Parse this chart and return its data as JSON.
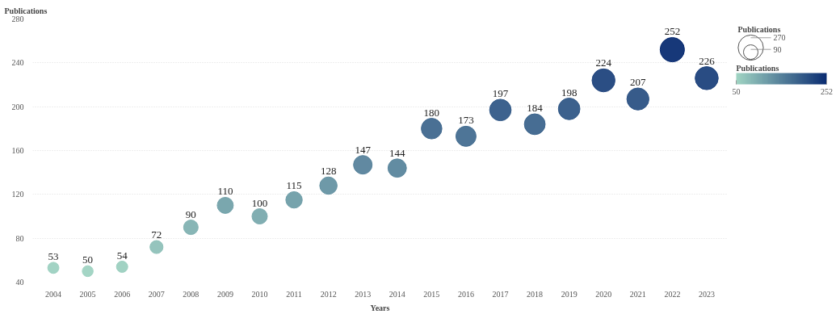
{
  "chart_data": {
    "type": "bubble",
    "xlabel": "Years",
    "ylabel": "Publications",
    "legend_title": "Publications",
    "clabel": "Publications",
    "categories": [
      "2004",
      "2005",
      "2006",
      "2007",
      "2008",
      "2009",
      "2010",
      "2011",
      "2012",
      "2013",
      "2014",
      "2015",
      "2016",
      "2017",
      "2018",
      "2019",
      "2020",
      "2021",
      "2022",
      "2023"
    ],
    "values": [
      53,
      50,
      54,
      72,
      90,
      110,
      100,
      115,
      128,
      147,
      144,
      180,
      173,
      197,
      184,
      198,
      224,
      207,
      252,
      226
    ],
    "sizes": [
      53,
      50,
      54,
      72,
      90,
      110,
      100,
      115,
      128,
      147,
      144,
      180,
      173,
      197,
      184,
      198,
      224,
      207,
      252,
      226
    ],
    "cvalues": [
      53,
      50,
      54,
      72,
      90,
      110,
      100,
      115,
      128,
      147,
      144,
      180,
      173,
      197,
      184,
      198,
      224,
      207,
      252,
      226
    ],
    "colors": [
      "#9dd1c1",
      "#9fd3c2",
      "#9cd0c0",
      "#8fc1b9",
      "#82b2b2",
      "#73a2aa",
      "#7aaaae",
      "#6f9ea8",
      "#6693a3",
      "#58839c",
      "#5a869d",
      "#40688e",
      "#456e91",
      "#335a88",
      "#3d658d",
      "#325987",
      "#20447d",
      "#2c5284",
      "#0b2d72",
      "#1e427c"
    ],
    "size_legend": [
      270,
      90
    ],
    "clim": [
      50,
      252
    ],
    "cticks": [
      50,
      252
    ],
    "ylim": [
      40,
      280
    ],
    "yticks": [
      40,
      80,
      120,
      160,
      200,
      240,
      280
    ],
    "grid": "y",
    "data_labels": true
  }
}
